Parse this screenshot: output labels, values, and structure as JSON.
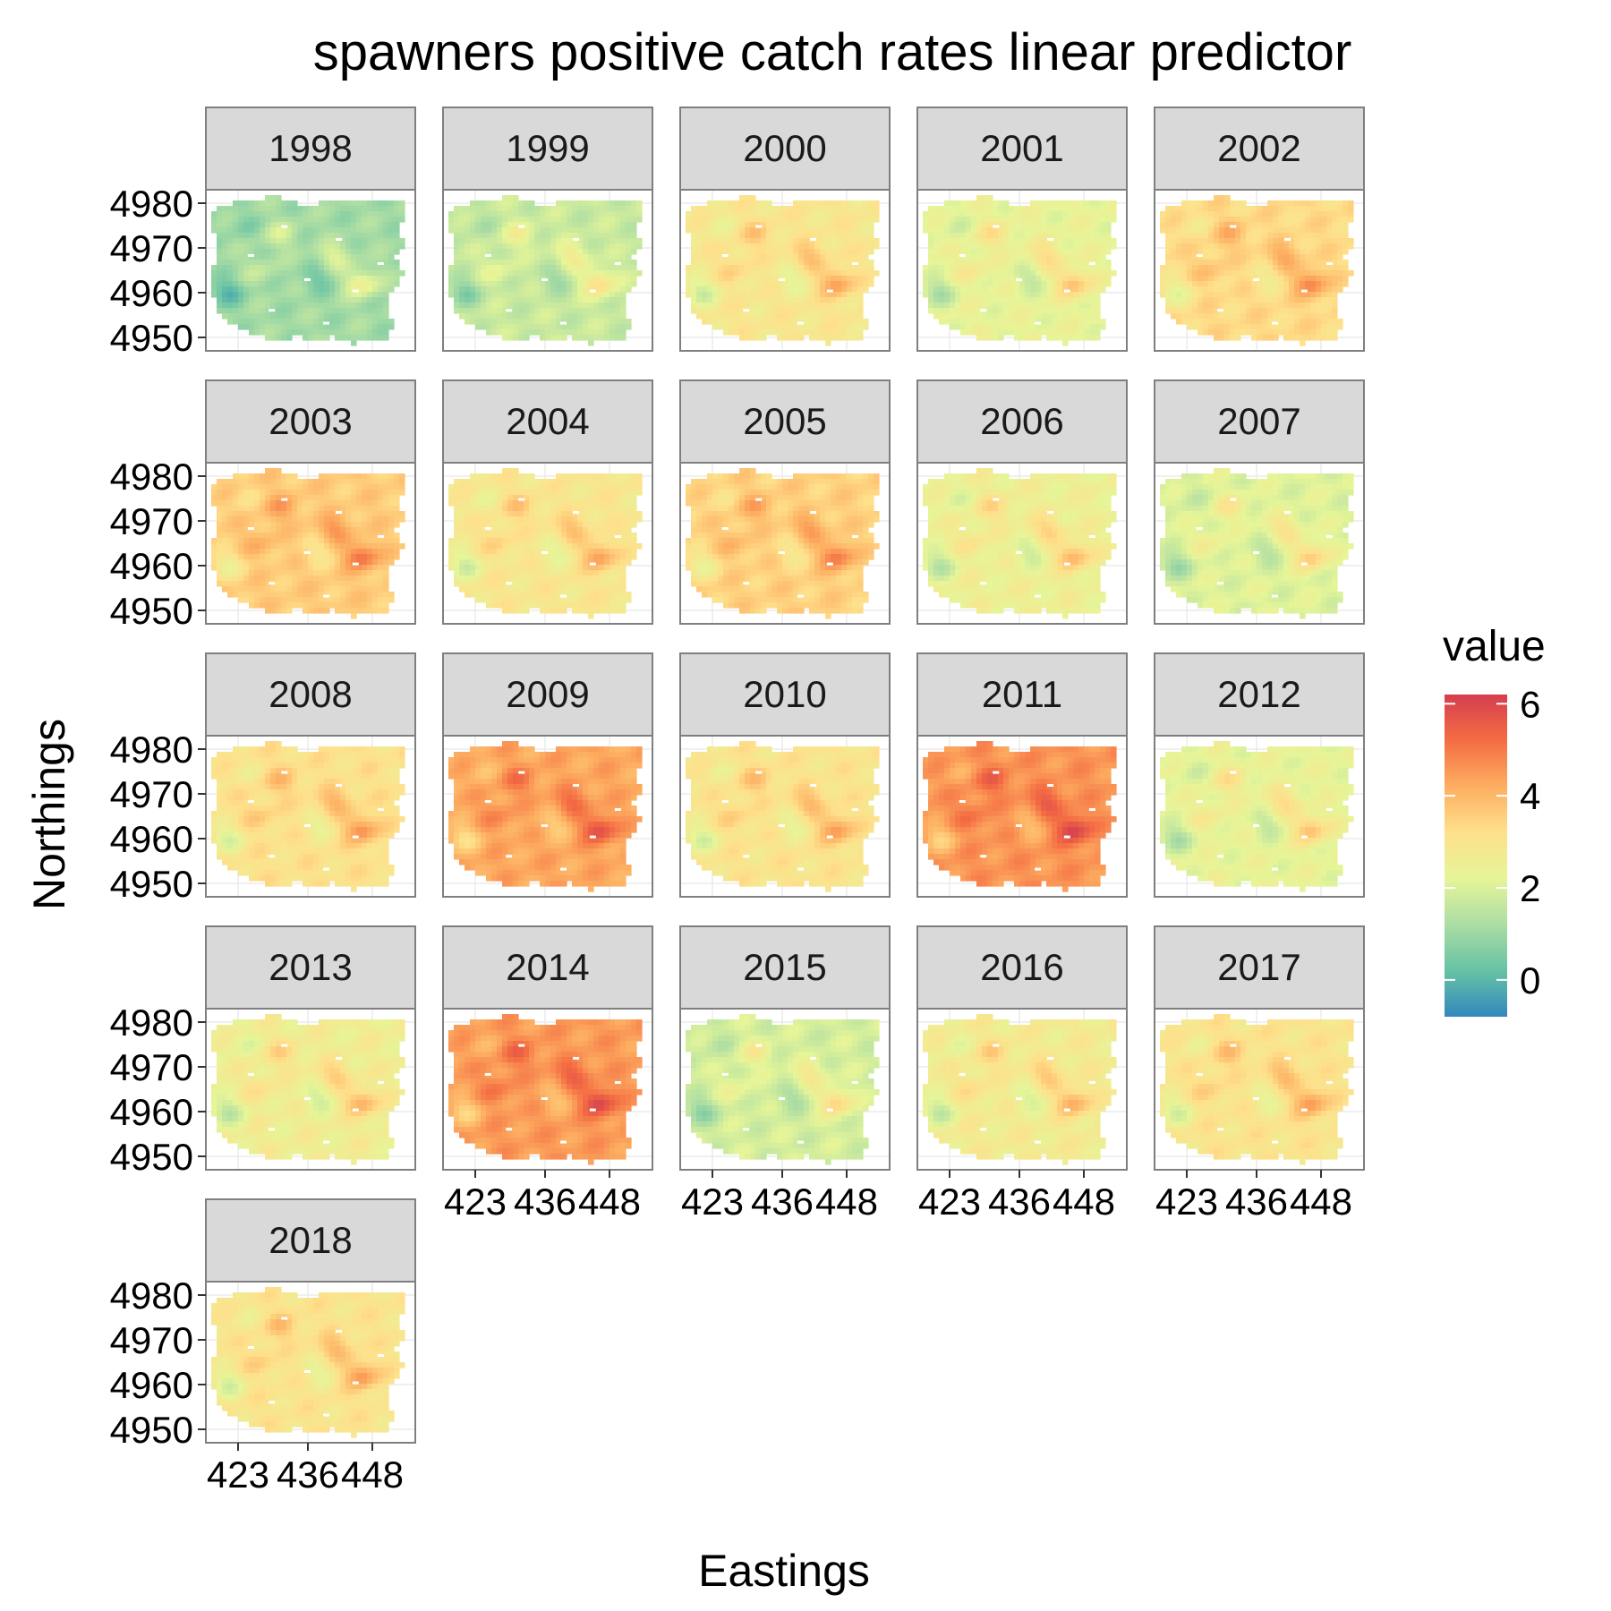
{
  "chart_data": {
    "type": "heatmap",
    "title": "spawners positive catch rates linear predictor",
    "xlabel": "Eastings",
    "ylabel": "Northings",
    "legend": {
      "title": "value",
      "position": "right",
      "ticks": [
        "0",
        "2",
        "4",
        "6"
      ],
      "range": [
        -0.8,
        6.2
      ],
      "colors": [
        "#3288bd",
        "#66c2a5",
        "#abdda4",
        "#e6f598",
        "#fee08b",
        "#fdae61",
        "#f46d43",
        "#d53e4f"
      ]
    },
    "x_ticks": [
      "423",
      "436",
      "448"
    ],
    "y_ticks": [
      "4950",
      "4960",
      "4970",
      "4980"
    ],
    "xlim": [
      417,
      456
    ],
    "ylim": [
      4947,
      4983
    ],
    "grid": true,
    "facets": [
      {
        "label": "1998",
        "mean_value": 1.1
      },
      {
        "label": "1999",
        "mean_value": 1.7
      },
      {
        "label": "2000",
        "mean_value": 2.9
      },
      {
        "label": "2001",
        "mean_value": 2.3
      },
      {
        "label": "2002",
        "mean_value": 3.3
      },
      {
        "label": "2003",
        "mean_value": 3.6
      },
      {
        "label": "2004",
        "mean_value": 2.9
      },
      {
        "label": "2005",
        "mean_value": 3.5
      },
      {
        "label": "2006",
        "mean_value": 2.5
      },
      {
        "label": "2007",
        "mean_value": 2.1
      },
      {
        "label": "2008",
        "mean_value": 3.1
      },
      {
        "label": "2009",
        "mean_value": 4.3
      },
      {
        "label": "2010",
        "mean_value": 3.0
      },
      {
        "label": "2011",
        "mean_value": 4.6
      },
      {
        "label": "2012",
        "mean_value": 2.3
      },
      {
        "label": "2013",
        "mean_value": 2.6
      },
      {
        "label": "2014",
        "mean_value": 4.5
      },
      {
        "label": "2015",
        "mean_value": 1.9
      },
      {
        "label": "2016",
        "mean_value": 2.7
      },
      {
        "label": "2017",
        "mean_value": 3.0
      },
      {
        "label": "2018",
        "mean_value": 3.0
      }
    ],
    "hotspots": [
      {
        "x": 446,
        "y": 4962,
        "delta": 1.6
      },
      {
        "x": 441,
        "y": 4968,
        "delta": 1.0
      },
      {
        "x": 431,
        "y": 4973,
        "delta": 0.8
      },
      {
        "x": 427,
        "y": 4965,
        "delta": 0.5
      },
      {
        "x": 421,
        "y": 4960,
        "delta": -1.1
      },
      {
        "x": 438,
        "y": 4963,
        "delta": -0.7
      },
      {
        "x": 424,
        "y": 4975,
        "delta": -0.4
      }
    ]
  }
}
